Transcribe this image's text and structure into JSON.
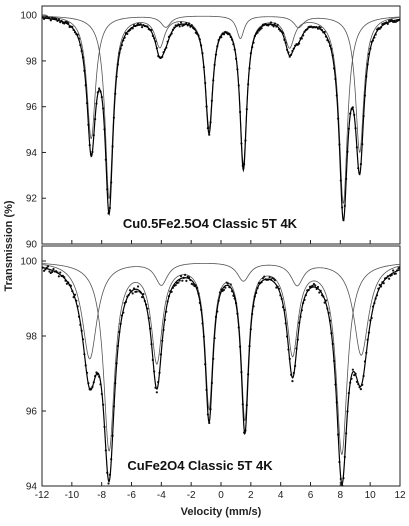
{
  "chart_data": [
    {
      "type": "scatter",
      "label": "Cu0.5Fe2.5O4 Classic 5T 4K",
      "xlabel": "Velocity (mm/s)",
      "ylabel": "Transmission (%)",
      "xlim": [
        -12,
        12
      ],
      "ylim": [
        90,
        100.4
      ],
      "y_ticks": [
        90,
        92,
        94,
        96,
        98,
        100
      ],
      "x_ticks": [
        -12,
        -10,
        -8,
        -6,
        -4,
        -2,
        0,
        2,
        4,
        6,
        8,
        10,
        12
      ],
      "grid": false,
      "baseline": 100,
      "total_lines": [
        {
          "x": -8.7,
          "depth": 5.6,
          "width": 0.35
        },
        {
          "x": -7.5,
          "depth": 8.2,
          "width": 0.32
        },
        {
          "x": -4.1,
          "depth": 1.4,
          "width": 0.38
        },
        {
          "x": -3.7,
          "depth": 0.6,
          "width": 0.4
        },
        {
          "x": -0.8,
          "depth": 5.0,
          "width": 0.3
        },
        {
          "x": 1.5,
          "depth": 6.6,
          "width": 0.28
        },
        {
          "x": 4.6,
          "depth": 1.4,
          "width": 0.38
        },
        {
          "x": 5.2,
          "depth": 0.6,
          "width": 0.4
        },
        {
          "x": 8.2,
          "depth": 8.4,
          "width": 0.34
        },
        {
          "x": 9.3,
          "depth": 6.2,
          "width": 0.34
        }
      ],
      "subspectra": [
        {
          "lines": [
            {
              "x": -7.5,
              "depth": 8.0,
              "width": 0.32
            },
            {
              "x": -4.1,
              "depth": 1.3,
              "width": 0.38
            },
            {
              "x": -0.8,
              "depth": 4.8,
              "width": 0.3
            },
            {
              "x": 1.5,
              "depth": 6.4,
              "width": 0.28
            },
            {
              "x": 4.6,
              "depth": 1.3,
              "width": 0.38
            },
            {
              "x": 8.2,
              "depth": 8.2,
              "width": 0.34
            }
          ]
        },
        {
          "lines": [
            {
              "x": -8.7,
              "depth": 5.4,
              "width": 0.35
            },
            {
              "x": -3.7,
              "depth": 0.5,
              "width": 0.4
            },
            {
              "x": 1.3,
              "depth": 1.0,
              "width": 0.3
            },
            {
              "x": 5.2,
              "depth": 0.5,
              "width": 0.4
            },
            {
              "x": 9.3,
              "depth": 6.0,
              "width": 0.34
            }
          ]
        }
      ]
    },
    {
      "type": "scatter",
      "label": "CuFe2O4 Classic 5T 4K",
      "xlabel": "Velocity (mm/s)",
      "ylabel": "Transmission (%)",
      "xlim": [
        -12,
        12
      ],
      "ylim": [
        94,
        100.4
      ],
      "y_ticks": [
        94,
        96,
        98,
        100
      ],
      "x_ticks": [
        -12,
        -10,
        -8,
        -6,
        -4,
        -2,
        0,
        2,
        4,
        6,
        8,
        10,
        12
      ],
      "grid": false,
      "baseline": 100,
      "total_lines": [
        {
          "x": -8.8,
          "depth": 2.8,
          "width": 0.6
        },
        {
          "x": -7.5,
          "depth": 5.3,
          "width": 0.45
        },
        {
          "x": -4.3,
          "depth": 3.2,
          "width": 0.45
        },
        {
          "x": -0.8,
          "depth": 4.1,
          "width": 0.32
        },
        {
          "x": 1.6,
          "depth": 4.4,
          "width": 0.3
        },
        {
          "x": 4.8,
          "depth": 2.9,
          "width": 0.45
        },
        {
          "x": 8.1,
          "depth": 5.4,
          "width": 0.45
        },
        {
          "x": 9.4,
          "depth": 2.7,
          "width": 0.6
        }
      ],
      "subspectra": [
        {
          "lines": [
            {
              "x": -7.5,
              "depth": 5.0,
              "width": 0.45
            },
            {
              "x": -4.3,
              "depth": 2.6,
              "width": 0.45
            },
            {
              "x": -0.8,
              "depth": 3.8,
              "width": 0.32
            },
            {
              "x": 1.6,
              "depth": 4.1,
              "width": 0.3
            },
            {
              "x": 4.8,
              "depth": 2.4,
              "width": 0.45
            },
            {
              "x": 8.1,
              "depth": 5.1,
              "width": 0.45
            }
          ]
        },
        {
          "lines": [
            {
              "x": -8.8,
              "depth": 2.6,
              "width": 0.6
            },
            {
              "x": -4.0,
              "depth": 0.6,
              "width": 0.5
            },
            {
              "x": 1.5,
              "depth": 0.5,
              "width": 0.5
            },
            {
              "x": 5.1,
              "depth": 0.6,
              "width": 0.5
            },
            {
              "x": 9.4,
              "depth": 2.5,
              "width": 0.6
            }
          ]
        }
      ]
    }
  ]
}
